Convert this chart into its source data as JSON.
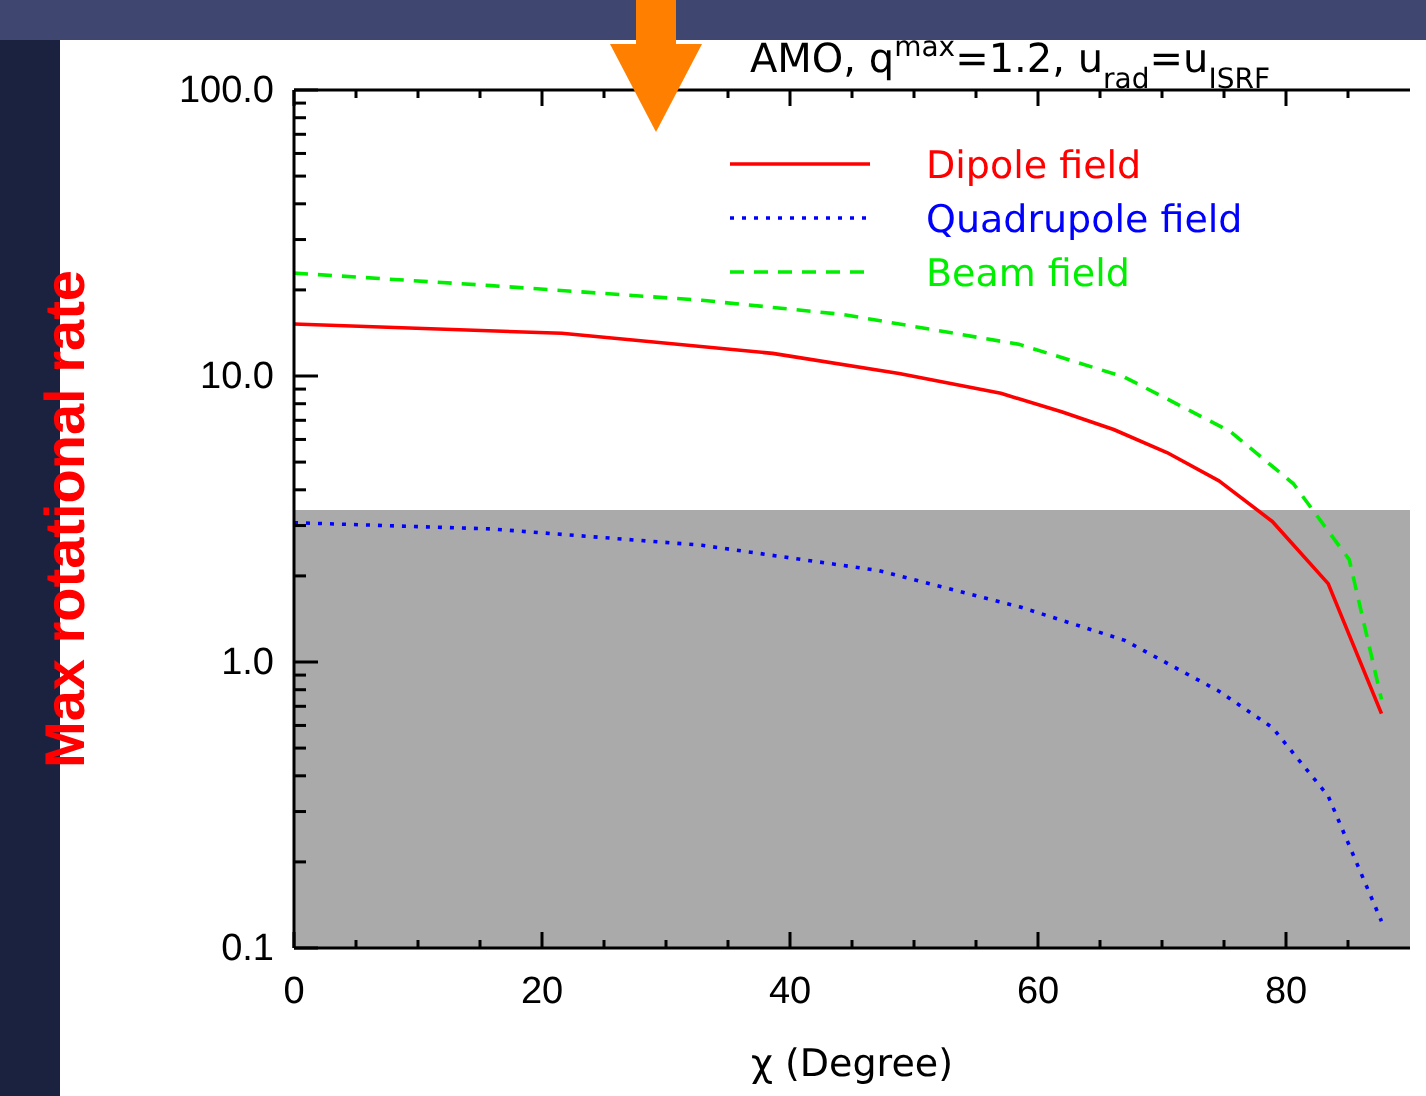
{
  "chart_data": {
    "type": "line",
    "title": "AMO, q$^{max}$=1.2, u$_{rad}$=u$_{ISRF}$",
    "xlabel": "χ (Degree)",
    "ylabel": "Max  rotational rate",
    "log": "y",
    "legend": "top right",
    "xlim": [
      0,
      90
    ],
    "ylim": [
      0.1,
      100
    ],
    "xticks": [
      0,
      {
        "value": 5,
        "label": null
      },
      {
        "value": 10,
        "label": null
      },
      {
        "value": 15,
        "label": null
      },
      20,
      {
        "value": 25,
        "label": null
      },
      {
        "value": 30,
        "label": null
      },
      {
        "value": 35,
        "label": null
      },
      40,
      {
        "value": 45,
        "label": null
      },
      {
        "value": 50,
        "label": null
      },
      {
        "value": 55,
        "label": null
      },
      60,
      {
        "value": 65,
        "label": null
      },
      {
        "value": 70,
        "label": null
      },
      {
        "value": 75,
        "label": null
      },
      80,
      {
        "value": 85,
        "label": null
      }
    ],
    "yticks": [
      0.1,
      {
        "value": 0.2,
        "label": null
      },
      {
        "value": 0.3,
        "label": null
      },
      {
        "value": 0.4,
        "label": null
      },
      {
        "value": 0.5,
        "label": null
      },
      {
        "value": 0.6,
        "label": null
      },
      {
        "value": 0.7,
        "label": null
      },
      {
        "value": 0.8,
        "label": null
      },
      {
        "value": 0.9,
        "label": null
      },
      {
        "value": 1,
        "label": "1.0"
      },
      {
        "value": 2,
        "label": null
      },
      {
        "value": 3,
        "label": null
      },
      {
        "value": 4,
        "label": null
      },
      {
        "value": 5,
        "label": null
      },
      {
        "value": 6,
        "label": null
      },
      {
        "value": 7,
        "label": null
      },
      {
        "value": 8,
        "label": null
      },
      {
        "value": 9,
        "label": null
      },
      {
        "value": 10,
        "label": "10.0"
      },
      {
        "value": 20,
        "label": null
      },
      {
        "value": 30,
        "label": null
      },
      {
        "value": 40,
        "label": null
      },
      {
        "value": 50,
        "label": null
      },
      {
        "value": 60,
        "label": null
      },
      {
        "value": 70,
        "label": null
      },
      {
        "value": 80,
        "label": null
      },
      {
        "value": 90,
        "label": null
      },
      {
        "value": 100,
        "label": "100.0"
      }
    ],
    "bands": [
      {
        "axis": "y",
        "from": 0.1,
        "to": 3.4,
        "color": "#aaaaaa"
      }
    ],
    "series": [
      {
        "name": "Dipole field",
        "color": "#ff0000",
        "line_style": "solid",
        "x": [
          0,
          21.6,
          38.6,
          48.8,
          57,
          61.9,
          66.1,
          70.4,
          74.6,
          78.9,
          83.4,
          87.7
        ],
        "values": [
          15.2,
          14.1,
          12,
          10.2,
          8.7,
          7.5,
          6.5,
          5.4,
          4.3,
          3.1,
          1.88,
          0.66
        ]
      },
      {
        "name": "Quadrupole field",
        "color": "#0000ff",
        "line_style": "dotted",
        "x": [
          0,
          15.9,
          32.9,
          47.1,
          58.5,
          67,
          74.6,
          78.9,
          83.4,
          87.7
        ],
        "values": [
          3.07,
          2.92,
          2.56,
          2.09,
          1.56,
          1.19,
          0.79,
          0.59,
          0.34,
          0.124
        ]
      },
      {
        "name": "Beam field",
        "color": "#00ee00",
        "line_style": "dashed",
        "x": [
          0,
          15.9,
          32.9,
          44.3,
          58.5,
          67,
          75.5,
          80.6,
          85.1,
          87.7
        ],
        "values": [
          22.9,
          20.7,
          18.4,
          16.4,
          12.9,
          9.9,
          6.4,
          4.2,
          2.28,
          0.74
        ]
      }
    ]
  }
}
